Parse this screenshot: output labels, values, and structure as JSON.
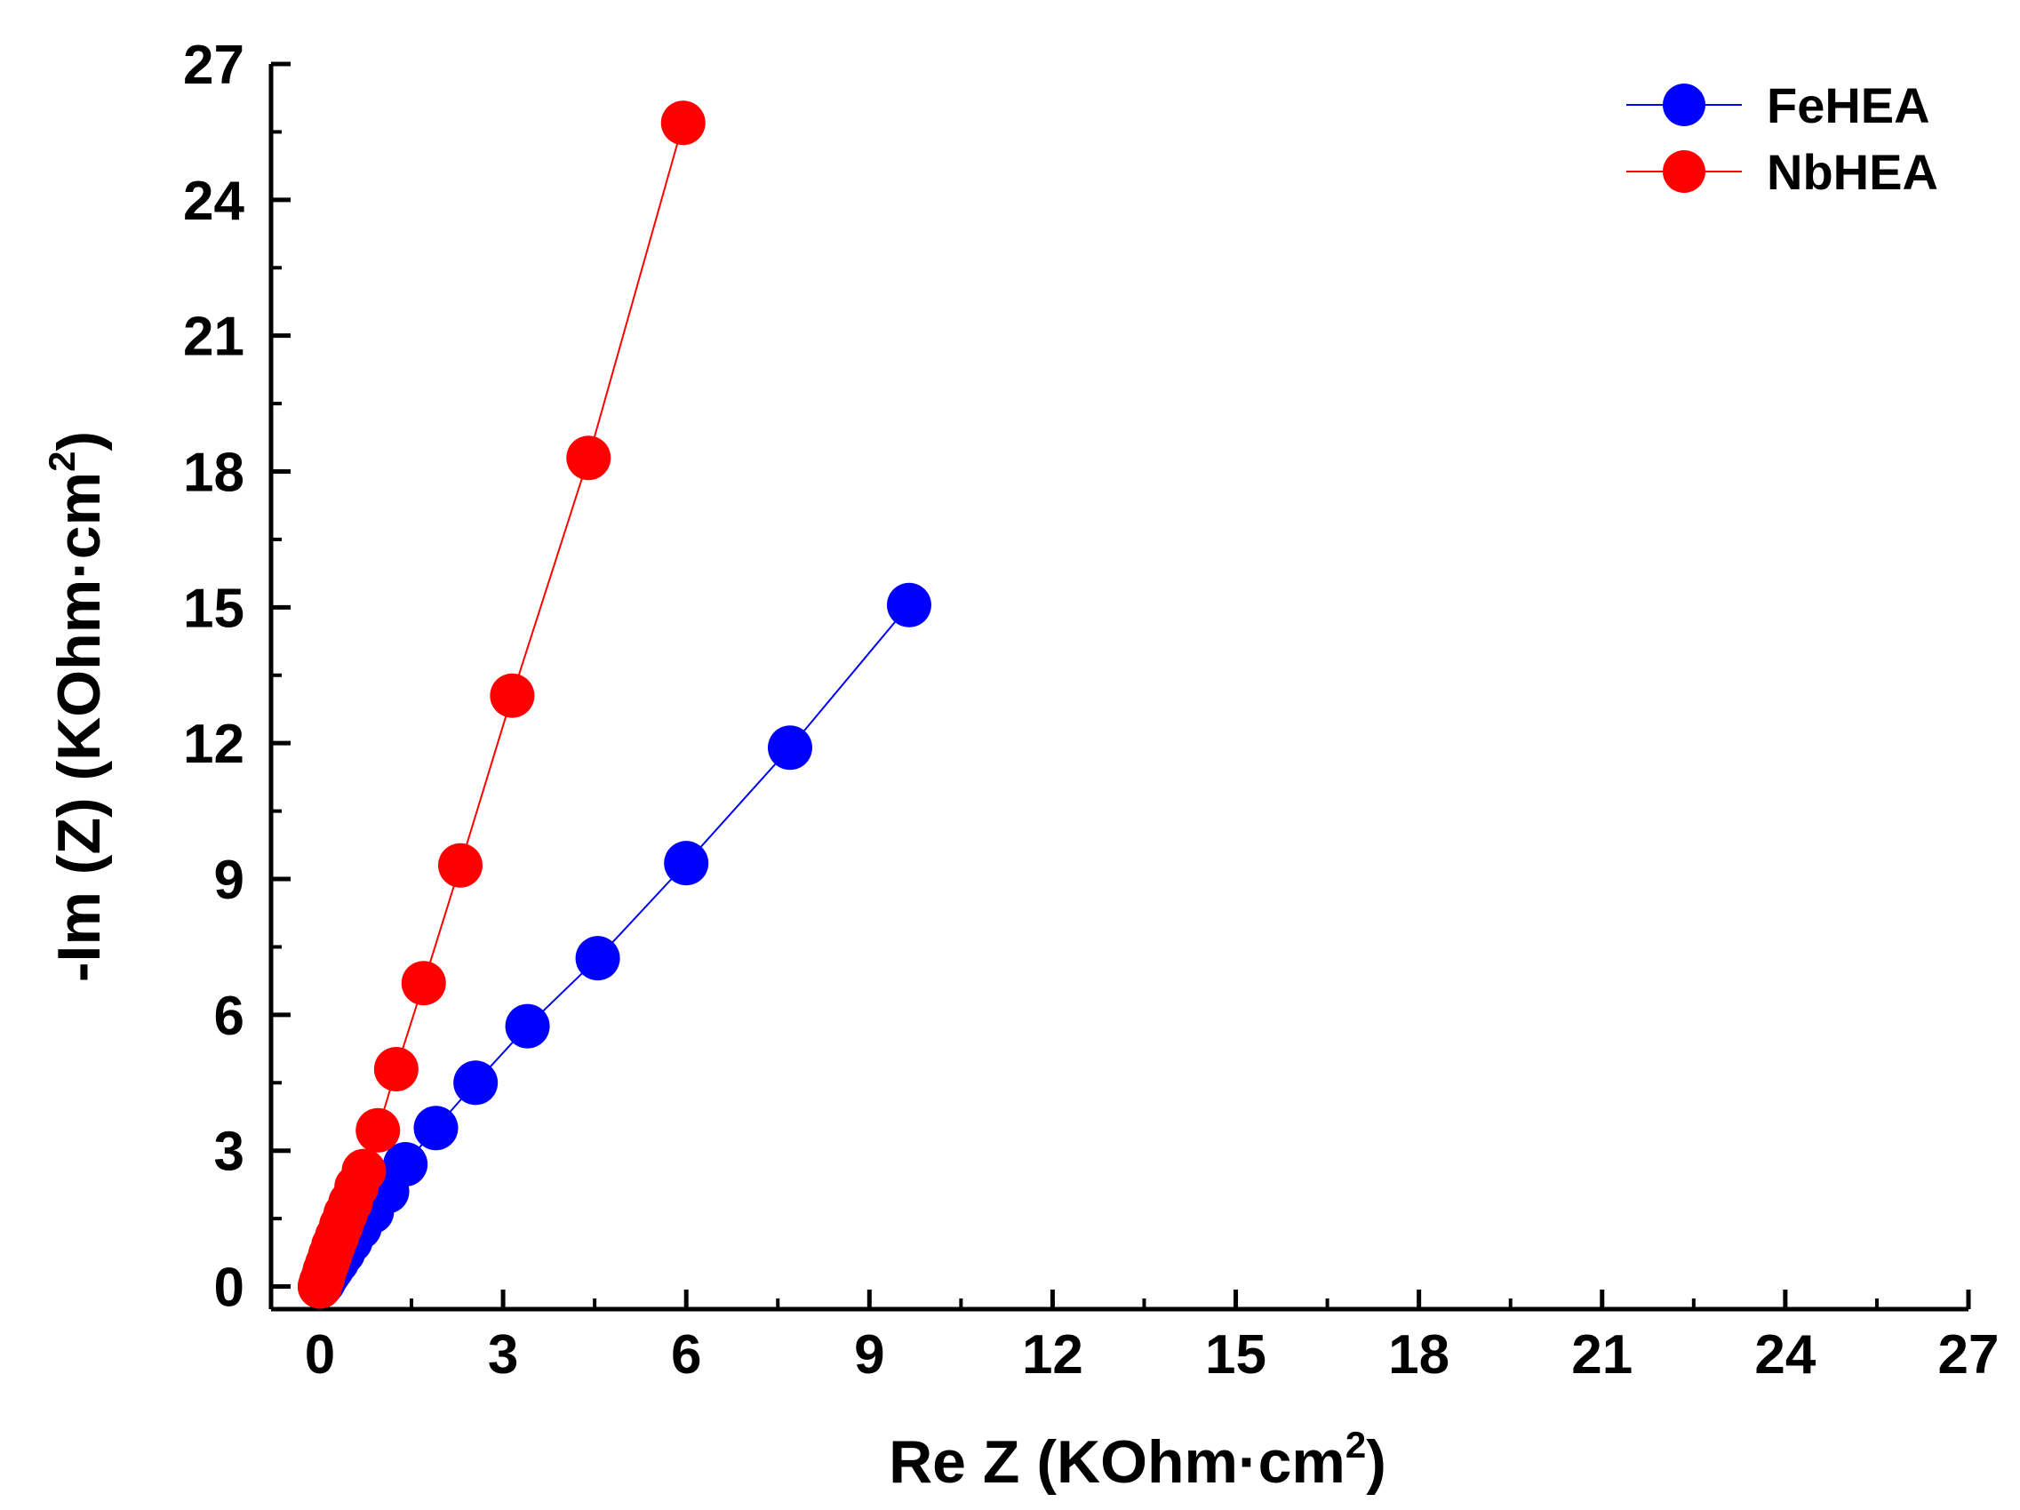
{
  "chart_data": {
    "type": "scatter",
    "title": "",
    "xlabel": {
      "text": "Re Z (KOhm·cm",
      "sup": "2",
      "close": ")"
    },
    "ylabel": {
      "text": "-Im (Z) (KOhm·cm",
      "sup": "2",
      "close": ")"
    },
    "xlim": [
      -0.8,
      27
    ],
    "ylim": [
      -0.5,
      27
    ],
    "xticks": [
      0,
      3,
      6,
      9,
      12,
      15,
      18,
      21,
      24,
      27
    ],
    "yticks": [
      0,
      3,
      6,
      9,
      12,
      15,
      18,
      21,
      24,
      27
    ],
    "legend_position": "top-right",
    "series": [
      {
        "name": "FeHEA",
        "color": "#0000ff",
        "x": [
          0.0,
          0.03,
          0.06,
          0.1,
          0.15,
          0.2,
          0.28,
          0.38,
          0.5,
          0.65,
          0.85,
          1.1,
          1.4,
          1.9,
          2.55,
          3.4,
          4.55,
          6.0,
          7.7,
          9.65
        ],
        "y": [
          0.0,
          0.05,
          0.1,
          0.2,
          0.3,
          0.4,
          0.55,
          0.75,
          1.0,
          1.3,
          1.65,
          2.1,
          2.7,
          3.5,
          4.5,
          5.75,
          7.25,
          9.35,
          11.9,
          15.05
        ]
      },
      {
        "name": "NbHEA",
        "color": "#ff0000",
        "x": [
          0.0,
          0.02,
          0.05,
          0.08,
          0.12,
          0.17,
          0.22,
          0.28,
          0.35,
          0.42,
          0.5,
          0.6,
          0.72,
          0.95,
          1.25,
          1.7,
          2.3,
          3.15,
          4.4,
          5.95
        ],
        "y": [
          0.0,
          0.1,
          0.2,
          0.35,
          0.5,
          0.7,
          0.9,
          1.1,
          1.35,
          1.6,
          1.85,
          2.2,
          2.55,
          3.45,
          4.8,
          6.7,
          9.3,
          13.05,
          18.3,
          25.7
        ]
      }
    ]
  }
}
